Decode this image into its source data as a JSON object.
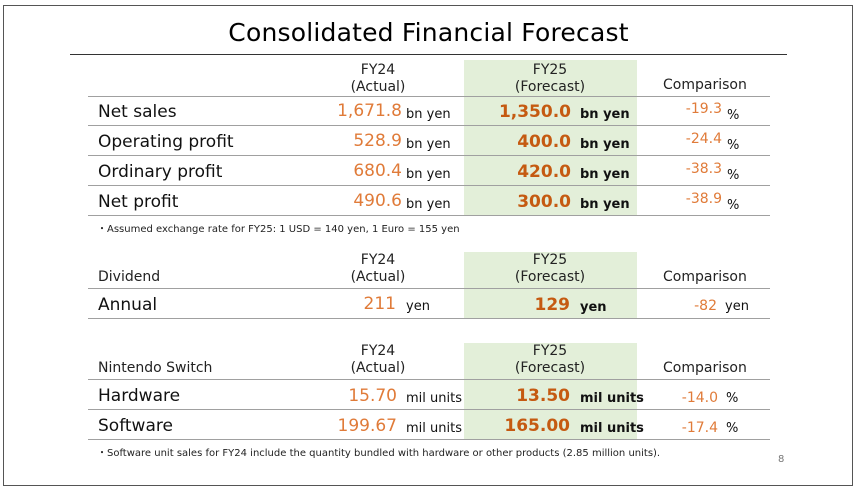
{
  "title": "Consolidated Financial Forecast",
  "page_number": "8",
  "sections": {
    "financial": {
      "col_fy24": "FY24",
      "col_fy24_sub": "(Actual)",
      "col_fy25": "FY25",
      "col_fy25_sub": "(Forecast)",
      "col_comparison": "Comparison",
      "rows": [
        {
          "label": "Net sales",
          "fy24": "1,671.8",
          "fy24_unit": "bn yen",
          "fy25": "1,350.0",
          "fy25_unit": "bn yen",
          "comparison": "-19.3",
          "comparison_unit": "%"
        },
        {
          "label": "Operating profit",
          "fy24": "528.9",
          "fy24_unit": "bn yen",
          "fy25": "400.0",
          "fy25_unit": "bn yen",
          "comparison": "-24.4",
          "comparison_unit": "%"
        },
        {
          "label": "Ordinary profit",
          "fy24": "680.4",
          "fy24_unit": "bn yen",
          "fy25": "420.0",
          "fy25_unit": "bn yen",
          "comparison": "-38.3",
          "comparison_unit": "%"
        },
        {
          "label": "Net profit",
          "fy24": "490.6",
          "fy24_unit": "bn yen",
          "fy25": "300.0",
          "fy25_unit": "bn yen",
          "comparison": "-38.9",
          "comparison_unit": "%"
        }
      ],
      "note": "・Assumed exchange rate for FY25: 1 USD = 140 yen, 1 Euro = 155 yen"
    },
    "dividend": {
      "heading": "Dividend",
      "col_fy24": "FY24",
      "col_fy24_sub": "(Actual)",
      "col_fy25": "FY25",
      "col_fy25_sub": "(Forecast)",
      "col_comparison": "Comparison",
      "rows": [
        {
          "label": "Annual",
          "fy24": "211",
          "fy24_unit": "yen",
          "fy25": "129",
          "fy25_unit": "yen",
          "comparison": "-82",
          "comparison_unit": "yen"
        }
      ]
    },
    "switch": {
      "heading": "Nintendo Switch",
      "col_fy24": "FY24",
      "col_fy24_sub": "(Actual)",
      "col_fy25": "FY25",
      "col_fy25_sub": "(Forecast)",
      "col_comparison": "Comparison",
      "rows": [
        {
          "label": "Hardware",
          "fy24": "15.70",
          "fy24_unit": "mil units",
          "fy25": "13.50",
          "fy25_unit": "mil units",
          "comparison": "-14.0",
          "comparison_unit": "%"
        },
        {
          "label": "Software",
          "fy24": "199.67",
          "fy24_unit": "mil units",
          "fy25": "165.00",
          "fy25_unit": "mil units",
          "comparison": "-17.4",
          "comparison_unit": "%"
        }
      ],
      "note": "・Software unit sales for FY24 include the quantity bundled with hardware or other products (2.85 million units)."
    }
  },
  "colors": {
    "forecast_bg": "#e3efd9",
    "actual_value": "#e07b39",
    "forecast_value": "#c55a11"
  }
}
